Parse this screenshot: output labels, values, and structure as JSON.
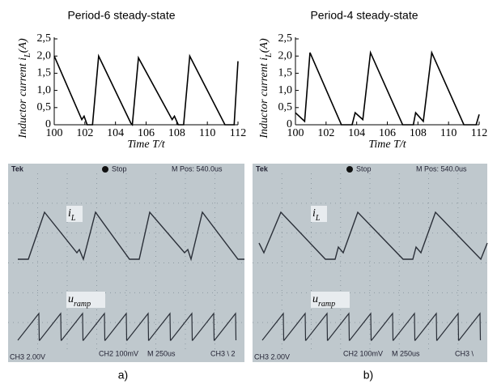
{
  "chart_data": [
    {
      "type": "line",
      "title": "Period-6 steady-state",
      "ylabel": [
        "Inductor current i",
        "L",
        "(A)"
      ],
      "xlabel": "Time T/t",
      "x": [
        100,
        101.8,
        101.95,
        102.15,
        102.5,
        102.9,
        105.0,
        105.1,
        105.5,
        107.7,
        107.85,
        108.1,
        108.45,
        108.85,
        111.15,
        111.75,
        112
      ],
      "series": [
        {
          "color": "#000000",
          "values": [
            2.0,
            0.15,
            0.25,
            0,
            0,
            2.0,
            0.05,
            0,
            1.95,
            0.15,
            0.25,
            0,
            0,
            2.0,
            0,
            0,
            1.85
          ]
        }
      ],
      "xlim": [
        100,
        112
      ],
      "xticks": [
        100,
        102,
        104,
        106,
        108,
        110,
        112
      ],
      "ylim": [
        0,
        2.5
      ],
      "yticks": [
        0,
        {
          "value": 0.5,
          "label": "0,5"
        },
        {
          "value": 1.0,
          "label": "1,0"
        },
        {
          "value": 1.5,
          "label": "1,5"
        },
        {
          "value": 2.0,
          "label": "2,0"
        },
        {
          "value": 2.5,
          "label": "2,5"
        }
      ]
    },
    {
      "type": "line",
      "title": "Period-4 steady-state",
      "ylabel": [
        "Inductor current i",
        "L",
        "(A)"
      ],
      "xlabel": "Time T/t",
      "x": [
        100,
        100.6,
        100.95,
        103.0,
        103.7,
        103.9,
        104.4,
        104.9,
        107.0,
        107.7,
        107.85,
        108.35,
        108.9,
        111.0,
        111.8,
        112
      ],
      "series": [
        {
          "color": "#000000",
          "values": [
            0.35,
            0.1,
            2.1,
            0,
            0,
            0.35,
            0.15,
            2.1,
            0,
            0,
            0.35,
            0.1,
            2.1,
            0,
            0,
            0.3
          ]
        }
      ],
      "xlim": [
        100,
        112
      ],
      "xticks": [
        100,
        102,
        104,
        106,
        108,
        110,
        112
      ],
      "ylim": [
        0,
        2.5
      ],
      "yticks": [
        0,
        {
          "value": 0.5,
          "label": "0,5"
        },
        {
          "value": 1.0,
          "label": "1,0"
        },
        {
          "value": 1.5,
          "label": "1,5"
        },
        {
          "value": 2.0,
          "label": "2,0"
        },
        {
          "value": 2.5,
          "label": "2,5"
        }
      ]
    }
  ],
  "scopes": [
    {
      "brand": "Tek",
      "state": "Stop",
      "position": "M Pos: 540.0us",
      "trace1": [
        "i",
        "L"
      ],
      "trace2": [
        "u",
        "ramp"
      ],
      "ch3": "CH3  2.00V",
      "ch2": "CH2  100mV",
      "time": "M 250us",
      "trigger": "CH3 \\ 2"
    },
    {
      "brand": "Tek",
      "state": "Stop",
      "position": "M Pos: 540.0us",
      "trace1": [
        "i",
        "L"
      ],
      "trace2": [
        "u",
        "ramp"
      ],
      "ch3": "CH3  2.00V",
      "ch2": "CH2  100mV",
      "time": "M 250us",
      "trigger": "CH3 \\"
    }
  ],
  "panel_labels": [
    "a)",
    "b)"
  ]
}
